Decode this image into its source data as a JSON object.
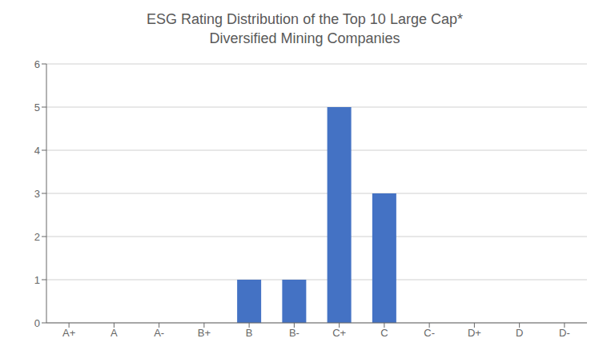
{
  "chart_data": {
    "type": "bar",
    "title": "ESG Rating Distribution of the Top 10 Large Cap*",
    "subtitle": "Diversified Mining Companies",
    "categories": [
      "A+",
      "A",
      "A-",
      "B+",
      "B",
      "B-",
      "C+",
      "C",
      "C-",
      "D+",
      "D",
      "D-"
    ],
    "values": [
      0,
      0,
      0,
      0,
      1,
      1,
      5,
      3,
      0,
      0,
      0,
      0
    ],
    "color": "#4472C4",
    "ylim": [
      0,
      6
    ],
    "yticks": [
      0,
      1,
      2,
      3,
      4,
      5,
      6
    ],
    "grid": true
  }
}
